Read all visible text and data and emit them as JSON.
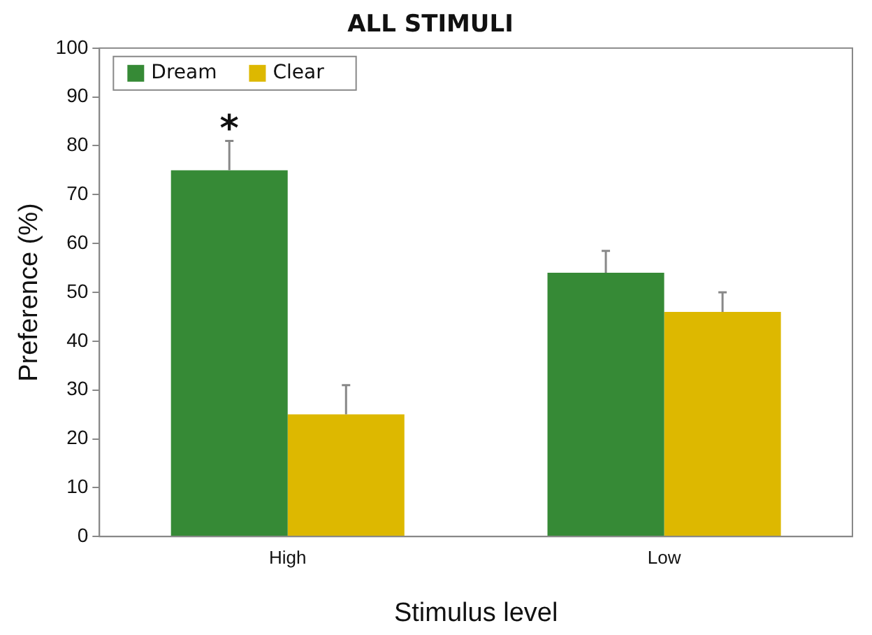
{
  "chart_data": {
    "type": "bar",
    "title": "ALL STIMULI",
    "xlabel": "Stimulus level",
    "ylabel": "Preference (%)",
    "categories": [
      "High",
      "Low"
    ],
    "series": [
      {
        "name": "Dream",
        "color": "#368a36",
        "values": [
          75,
          54
        ],
        "errors": [
          [
            75,
            81
          ],
          [
            54,
            58.5
          ]
        ]
      },
      {
        "name": "Clear",
        "color": "#ddb800",
        "values": [
          25,
          46
        ],
        "errors": [
          [
            25,
            31
          ],
          [
            46,
            50
          ]
        ]
      }
    ],
    "ylim": [
      0,
      100
    ],
    "yticks": [
      0,
      10,
      20,
      30,
      40,
      50,
      60,
      70,
      80,
      90,
      100
    ],
    "grid": false,
    "legend": "top left",
    "annotations": [
      "*"
    ]
  }
}
